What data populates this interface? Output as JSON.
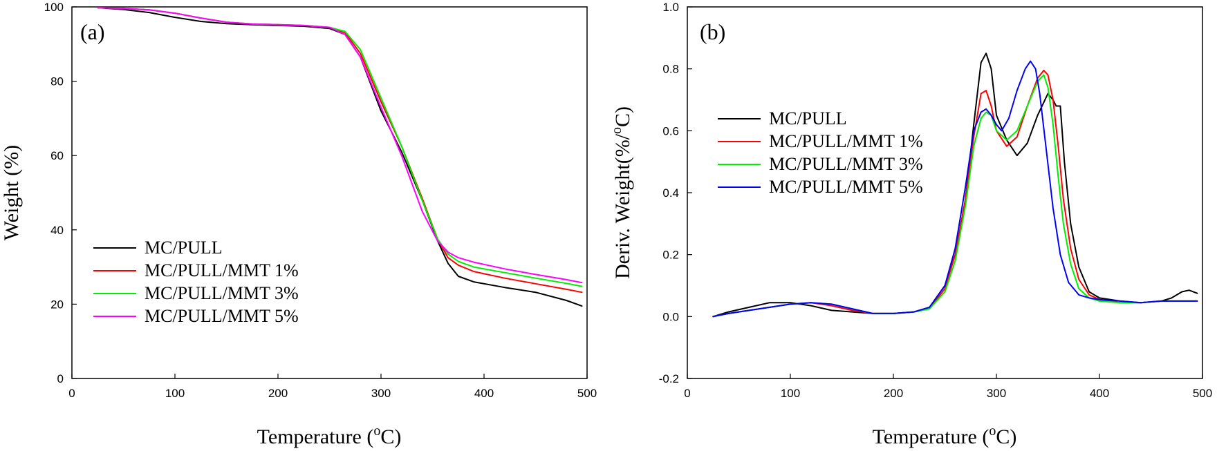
{
  "chart_data": [
    {
      "type": "line",
      "panel_label": "(a)",
      "xlabel": {
        "base": "Temperature (",
        "sup": "o",
        "tail": "C)"
      },
      "ylabel": "Weight (%)",
      "xlim": [
        0,
        500
      ],
      "ylim": [
        0,
        100
      ],
      "xticks": [
        0,
        100,
        200,
        300,
        400,
        500
      ],
      "yticks": [
        0,
        20,
        40,
        60,
        80,
        100
      ],
      "grid": false,
      "legend_position": "bottom-left",
      "series": [
        {
          "name": "MC/PULL",
          "color": "#000000",
          "x": [
            25,
            50,
            75,
            100,
            125,
            150,
            175,
            200,
            225,
            250,
            265,
            280,
            300,
            320,
            340,
            355,
            365,
            375,
            390,
            420,
            450,
            480,
            495
          ],
          "y": [
            99.8,
            99.3,
            98.5,
            97.2,
            96.1,
            95.5,
            95.2,
            95.0,
            94.8,
            94.2,
            92.6,
            86.5,
            72.0,
            61.0,
            48.0,
            37.0,
            31.0,
            27.5,
            26.0,
            24.5,
            23.2,
            21.0,
            19.5
          ]
        },
        {
          "name": "MC/PULL/MMT 1%",
          "color": "#ff0000",
          "x": [
            25,
            50,
            75,
            100,
            125,
            150,
            175,
            200,
            225,
            250,
            265,
            280,
            300,
            320,
            340,
            355,
            365,
            375,
            390,
            420,
            450,
            480,
            495
          ],
          "y": [
            99.8,
            99.6,
            99.2,
            98.3,
            97.0,
            95.9,
            95.4,
            95.2,
            95.0,
            94.5,
            93.1,
            87.5,
            74.5,
            62.5,
            48.5,
            37.5,
            32.5,
            30.5,
            28.8,
            27.0,
            25.5,
            24.0,
            23.2
          ]
        },
        {
          "name": "MC/PULL/MMT 3%",
          "color": "#00ee00",
          "x": [
            25,
            50,
            75,
            100,
            125,
            150,
            175,
            200,
            225,
            250,
            265,
            280,
            300,
            320,
            340,
            355,
            365,
            375,
            390,
            420,
            450,
            480,
            495
          ],
          "y": [
            99.8,
            99.6,
            99.2,
            98.3,
            97.0,
            95.9,
            95.4,
            95.2,
            95.0,
            94.5,
            93.4,
            88.5,
            75.5,
            62.5,
            48.0,
            37.5,
            33.5,
            31.5,
            30.0,
            28.5,
            27.0,
            25.6,
            24.8
          ]
        },
        {
          "name": "MC/PULL/MMT 5%",
          "color": "#ff00ff",
          "x": [
            25,
            50,
            75,
            100,
            125,
            150,
            175,
            200,
            225,
            250,
            265,
            280,
            300,
            320,
            340,
            355,
            365,
            375,
            390,
            420,
            450,
            480,
            495
          ],
          "y": [
            99.8,
            99.6,
            99.2,
            98.3,
            97.0,
            95.9,
            95.4,
            95.2,
            95.0,
            94.5,
            92.6,
            86.5,
            73.0,
            60.0,
            45.0,
            37.0,
            34.0,
            32.5,
            31.3,
            29.5,
            28.0,
            26.6,
            25.8
          ]
        }
      ]
    },
    {
      "type": "line",
      "panel_label": "(b)",
      "xlabel": {
        "base": "Temperature (",
        "sup": "o",
        "tail": "C)"
      },
      "ylabel": {
        "base": "Deriv. Weight(%/",
        "sup": "o",
        "tail": "C)"
      },
      "xlim": [
        0,
        500
      ],
      "ylim": [
        -0.2,
        1.0
      ],
      "xticks": [
        0,
        100,
        200,
        300,
        400,
        500
      ],
      "yticks": [
        -0.2,
        0.0,
        0.2,
        0.4,
        0.6,
        0.8,
        1.0
      ],
      "grid": false,
      "legend_position": "top-left",
      "series": [
        {
          "name": "MC/PULL",
          "color": "#000000",
          "x": [
            25,
            40,
            60,
            80,
            100,
            120,
            140,
            160,
            180,
            200,
            220,
            235,
            250,
            260,
            270,
            278,
            285,
            290,
            295,
            300,
            310,
            320,
            330,
            340,
            350,
            355,
            358,
            362,
            366,
            372,
            380,
            390,
            400,
            420,
            440,
            460,
            470,
            480,
            487,
            495
          ],
          "y": [
            0.0,
            0.015,
            0.03,
            0.045,
            0.045,
            0.035,
            0.02,
            0.015,
            0.01,
            0.01,
            0.015,
            0.03,
            0.1,
            0.2,
            0.38,
            0.62,
            0.82,
            0.85,
            0.8,
            0.65,
            0.57,
            0.52,
            0.56,
            0.65,
            0.72,
            0.7,
            0.68,
            0.68,
            0.5,
            0.3,
            0.16,
            0.08,
            0.06,
            0.05,
            0.045,
            0.05,
            0.06,
            0.08,
            0.085,
            0.075
          ]
        },
        {
          "name": "MC/PULL/MMT 1%",
          "color": "#ff0000",
          "x": [
            25,
            40,
            60,
            80,
            100,
            120,
            140,
            160,
            180,
            200,
            220,
            235,
            250,
            260,
            270,
            278,
            285,
            290,
            295,
            300,
            310,
            320,
            330,
            340,
            346,
            350,
            355,
            360,
            365,
            372,
            380,
            390,
            400,
            420,
            440,
            460,
            480,
            495
          ],
          "y": [
            0.0,
            0.01,
            0.02,
            0.03,
            0.04,
            0.045,
            0.035,
            0.02,
            0.01,
            0.01,
            0.015,
            0.025,
            0.09,
            0.2,
            0.38,
            0.58,
            0.72,
            0.73,
            0.68,
            0.6,
            0.55,
            0.58,
            0.68,
            0.77,
            0.795,
            0.78,
            0.7,
            0.55,
            0.38,
            0.22,
            0.12,
            0.07,
            0.055,
            0.045,
            0.045,
            0.05,
            0.05,
            0.05
          ]
        },
        {
          "name": "MC/PULL/MMT 3%",
          "color": "#00ee00",
          "x": [
            25,
            40,
            60,
            80,
            100,
            120,
            140,
            160,
            180,
            200,
            220,
            235,
            250,
            260,
            270,
            278,
            285,
            290,
            295,
            300,
            310,
            320,
            330,
            340,
            346,
            350,
            355,
            360,
            365,
            372,
            380,
            390,
            400,
            420,
            440,
            460,
            480,
            495
          ],
          "y": [
            0.0,
            0.01,
            0.02,
            0.03,
            0.04,
            0.045,
            0.04,
            0.025,
            0.01,
            0.01,
            0.015,
            0.025,
            0.08,
            0.18,
            0.36,
            0.55,
            0.64,
            0.66,
            0.65,
            0.6,
            0.57,
            0.6,
            0.68,
            0.76,
            0.78,
            0.74,
            0.62,
            0.45,
            0.3,
            0.17,
            0.09,
            0.06,
            0.05,
            0.045,
            0.045,
            0.05,
            0.05,
            0.05
          ]
        },
        {
          "name": "MC/PULL/MMT 5%",
          "color": "#0000ff",
          "x": [
            25,
            40,
            60,
            80,
            100,
            120,
            140,
            160,
            180,
            200,
            220,
            235,
            250,
            260,
            270,
            278,
            285,
            290,
            295,
            300,
            305,
            312,
            320,
            328,
            333,
            338,
            342,
            348,
            355,
            362,
            370,
            380,
            390,
            400,
            420,
            440,
            460,
            480,
            495
          ],
          "y": [
            0.0,
            0.01,
            0.02,
            0.03,
            0.04,
            0.045,
            0.04,
            0.025,
            0.01,
            0.01,
            0.015,
            0.03,
            0.1,
            0.22,
            0.42,
            0.6,
            0.66,
            0.67,
            0.65,
            0.62,
            0.6,
            0.64,
            0.73,
            0.8,
            0.825,
            0.8,
            0.72,
            0.55,
            0.35,
            0.2,
            0.11,
            0.07,
            0.06,
            0.055,
            0.05,
            0.045,
            0.05,
            0.05,
            0.05
          ]
        }
      ]
    }
  ]
}
